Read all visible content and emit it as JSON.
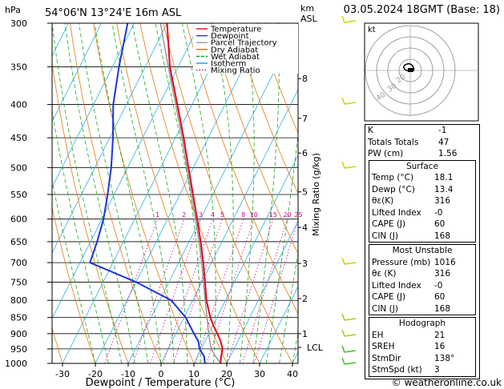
{
  "header": {
    "p_unit": "hPa",
    "location": "54°06'N 13°24'E 16m ASL",
    "km_label": "km",
    "asl_label": "ASL",
    "datetime": "03.05.2024 18GMT (Base: 18)"
  },
  "legend": {
    "items": [
      {
        "label": "Temperature",
        "color": "#e8001c"
      },
      {
        "label": "Dewpoint",
        "color": "#1a35d8"
      },
      {
        "label": "Parcel Trajectory",
        "color": "#999999"
      },
      {
        "label": "Dry Adiabat",
        "color": "#e07000"
      },
      {
        "label": "Wet Adiabat",
        "color": "#00a000"
      },
      {
        "label": "Isotherm",
        "color": "#00a0e0"
      },
      {
        "label": "Mixing Ratio",
        "color": "#d0009a"
      }
    ]
  },
  "chart_data": {
    "type": "line",
    "title": "54°06'N 13°24'E 16m ASL",
    "xlabel": "Dewpoint / Temperature (°C)",
    "ylabel": "hPa",
    "right_label": "Mixing Ratio (g/kg)",
    "pressure_ticks": [
      300,
      350,
      400,
      450,
      500,
      550,
      600,
      650,
      700,
      750,
      800,
      850,
      900,
      950,
      1000
    ],
    "temp_ticks": [
      -30,
      -20,
      -10,
      0,
      10,
      20,
      30,
      40
    ],
    "xlim": [
      -35,
      40
    ],
    "ylim": [
      1000,
      300
    ],
    "km_ticks": [
      {
        "km": "1",
        "p": 900
      },
      {
        "km": "2",
        "p": 795
      },
      {
        "km": "3",
        "p": 702
      },
      {
        "km": "4",
        "p": 618
      },
      {
        "km": "5",
        "p": 545
      },
      {
        "km": "6",
        "p": 475
      },
      {
        "km": "7",
        "p": 420
      },
      {
        "km": "8",
        "p": 365
      }
    ],
    "lcl": {
      "label": "LCL",
      "p": 945
    },
    "mixing_ratio_labels": [
      "1",
      "2",
      "3",
      "4",
      "5",
      "8",
      "10",
      "15",
      "20",
      "25"
    ],
    "mixing_ratio_values": [
      1,
      2,
      3,
      4,
      5,
      8,
      10,
      15,
      20,
      25
    ],
    "series": [
      {
        "name": "Temperature",
        "color": "#e8001c",
        "p": [
          1000,
          975,
          950,
          925,
          900,
          875,
          850,
          800,
          750,
          700,
          650,
          600,
          550,
          500,
          450,
          400,
          350,
          300
        ],
        "t": [
          18.1,
          17.2,
          16.5,
          14.8,
          12.6,
          10.2,
          8.0,
          4.2,
          1.0,
          -2.5,
          -6.5,
          -11.0,
          -16.0,
          -21.5,
          -27.5,
          -34.5,
          -42.5,
          -50.0
        ]
      },
      {
        "name": "Dewpoint",
        "color": "#1a35d8",
        "p": [
          1000,
          975,
          950,
          925,
          900,
          875,
          850,
          800,
          750,
          700,
          650,
          600,
          550,
          500,
          450,
          400,
          350,
          300
        ],
        "t": [
          13.4,
          12.0,
          9.5,
          8.0,
          5.5,
          3.0,
          0.5,
          -6.5,
          -20.0,
          -37.0,
          -38.0,
          -39.5,
          -42.0,
          -45.0,
          -49.0,
          -54.0,
          -58.0,
          -62.0
        ]
      },
      {
        "name": "Parcel Trajectory",
        "color": "#999999",
        "p": [
          1000,
          975,
          950,
          925,
          900,
          875,
          850,
          800,
          750,
          700,
          650,
          600,
          550,
          500,
          450,
          400,
          350,
          300
        ],
        "t": [
          18.1,
          15.5,
          13.0,
          11.5,
          10.0,
          8.5,
          7.0,
          3.8,
          0.5,
          -3.0,
          -7.0,
          -11.5,
          -16.5,
          -22.0,
          -28.0,
          -35.0,
          -43.0,
          -52.0
        ]
      }
    ]
  },
  "hodograph": {
    "label": "kt",
    "rings": [
      "20",
      "30",
      "40"
    ]
  },
  "indices": {
    "rows": [
      {
        "label": "K",
        "value": "-1"
      },
      {
        "label": "Totals Totals",
        "value": "47"
      },
      {
        "label": "PW (cm)",
        "value": "1.56"
      }
    ]
  },
  "surface": {
    "title": "Surface",
    "rows": [
      {
        "label": "Temp (°C)",
        "value": "18.1"
      },
      {
        "label": "Dewp (°C)",
        "value": "13.4"
      },
      {
        "label": "θε(K)",
        "value": "316"
      },
      {
        "label": "Lifted Index",
        "value": "-0"
      },
      {
        "label": "CAPE (J)",
        "value": "60"
      },
      {
        "label": "CIN (J)",
        "value": "168"
      }
    ]
  },
  "most_unstable": {
    "title": "Most Unstable",
    "rows": [
      {
        "label": "Pressure (mb)",
        "value": "1016"
      },
      {
        "label": "θε (K)",
        "value": "316"
      },
      {
        "label": "Lifted Index",
        "value": "-0"
      },
      {
        "label": "CAPE (J)",
        "value": "60"
      },
      {
        "label": "CIN (J)",
        "value": "168"
      }
    ]
  },
  "hodo_table": {
    "title": "Hodograph",
    "rows": [
      {
        "label": "EH",
        "value": "21"
      },
      {
        "label": "SREH",
        "value": "16"
      },
      {
        "label": "StmDir",
        "value": "138°"
      },
      {
        "label": "StmSpd (kt)",
        "value": "3"
      }
    ]
  },
  "footer": {
    "copyright": "© weatheronline.co.uk"
  }
}
